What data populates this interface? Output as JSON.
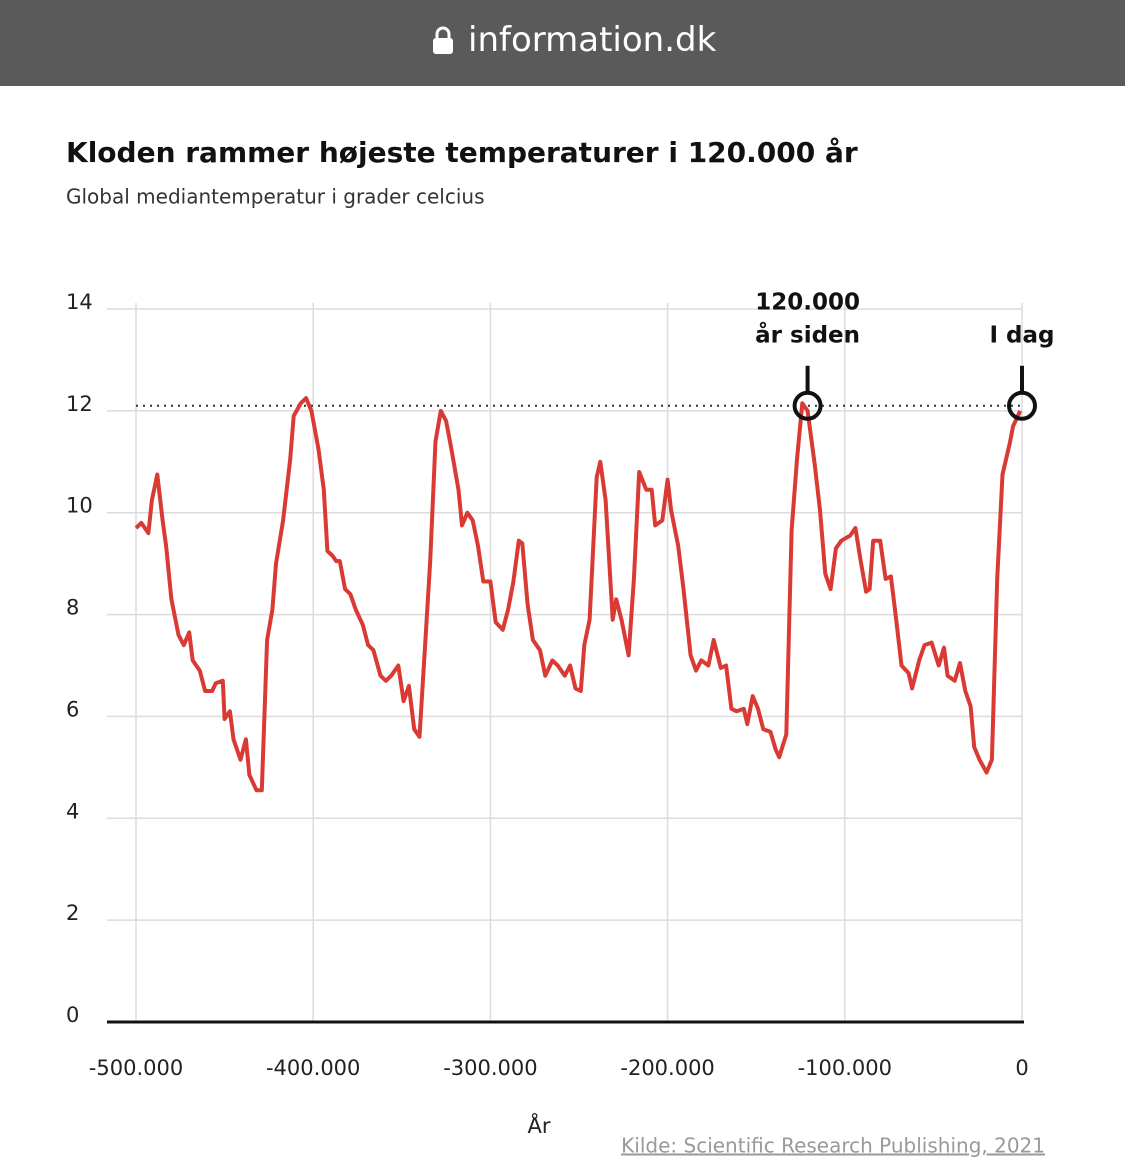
{
  "browser": {
    "url": "information.dk"
  },
  "chart_data": {
    "type": "line",
    "title": "Kloden rammer højeste temperaturer i 120.000 år",
    "subtitle": "Global mediantemperatur i grader celcius",
    "x_label": "År",
    "source": "Kilde: Scientific Research Publishing, 2021",
    "xlim": [
      -500000,
      0
    ],
    "ylim": [
      0,
      14
    ],
    "xticks": [
      {
        "value": -500000,
        "label": "-500.000"
      },
      {
        "value": -400000,
        "label": "-400.000"
      },
      {
        "value": -300000,
        "label": "-300.000"
      },
      {
        "value": -200000,
        "label": "-200.000"
      },
      {
        "value": -100000,
        "label": "-100.000"
      },
      0
    ],
    "yticks": [
      0,
      2,
      4,
      6,
      8,
      10,
      12,
      14
    ],
    "grid": true,
    "reference_line": 12.1,
    "annotations": [
      {
        "label": [
          "120.000",
          "år siden"
        ],
        "x": -121000,
        "y": 12.1
      },
      {
        "label": [
          "I dag"
        ],
        "x": 0,
        "y": 12.1
      }
    ],
    "series": [
      {
        "color": "#d93a34",
        "x": [
          -500000,
          -497000,
          -493000,
          -491000,
          -488000,
          -485000,
          -483000,
          -480000,
          -476000,
          -473000,
          -470000,
          -468000,
          -464000,
          -461000,
          -457000,
          -455000,
          -451000,
          -450000,
          -447000,
          -445000,
          -441000,
          -438000,
          -436000,
          -432000,
          -429000,
          -426000,
          -423000,
          -421000,
          -417000,
          -413000,
          -411000,
          -407000,
          -404000,
          -401000,
          -397000,
          -394000,
          -392000,
          -389000,
          -387000,
          -385000,
          -382000,
          -379000,
          -376000,
          -372000,
          -369000,
          -366000,
          -362000,
          -359000,
          -356000,
          -352000,
          -349000,
          -346000,
          -343000,
          -340000,
          -337000,
          -334000,
          -331000,
          -328000,
          -325000,
          -322000,
          -318000,
          -316000,
          -313000,
          -310000,
          -307000,
          -304000,
          -300000,
          -297000,
          -293000,
          -290000,
          -287000,
          -284000,
          -282000,
          -279000,
          -276000,
          -272000,
          -269000,
          -265000,
          -262000,
          -258000,
          -255000,
          -252000,
          -249000,
          -247000,
          -244000,
          -240000,
          -238000,
          -235000,
          -231000,
          -229000,
          -226000,
          -222000,
          -219000,
          -216000,
          -212000,
          -209000,
          -207000,
          -203000,
          -200000,
          -198000,
          -194000,
          -191000,
          -187000,
          -184000,
          -181000,
          -177000,
          -174000,
          -170000,
          -167000,
          -164000,
          -161000,
          -157000,
          -155000,
          -152000,
          -149000,
          -146000,
          -142000,
          -139000,
          -137000,
          -133000,
          -130000,
          -127000,
          -124000,
          -121000,
          -117000,
          -114000,
          -111000,
          -108000,
          -105000,
          -102000,
          -97000,
          -94000,
          -91000,
          -88000,
          -86000,
          -84000,
          -80000,
          -77000,
          -74000,
          -71000,
          -68000,
          -64000,
          -62000,
          -58000,
          -55000,
          -51000,
          -47000,
          -44000,
          -42000,
          -38000,
          -35000,
          -32000,
          -29000,
          -27000,
          -24000,
          -20000,
          -17000,
          -14000,
          -11000,
          -7000,
          -5000,
          -1000
        ],
        "values": [
          9.7,
          9.8,
          9.6,
          10.25,
          10.75,
          9.85,
          9.35,
          8.3,
          7.6,
          7.4,
          7.65,
          7.1,
          6.9,
          6.5,
          6.5,
          6.65,
          6.7,
          5.95,
          6.1,
          5.55,
          5.15,
          5.55,
          4.85,
          4.55,
          4.55,
          7.5,
          8.1,
          9.0,
          9.85,
          11.05,
          11.9,
          12.15,
          12.25,
          12.0,
          11.25,
          10.45,
          9.25,
          9.15,
          9.05,
          9.05,
          8.5,
          8.4,
          8.1,
          7.8,
          7.4,
          7.3,
          6.8,
          6.7,
          6.8,
          7.0,
          6.3,
          6.6,
          5.75,
          5.6,
          7.3,
          9.05,
          11.4,
          12.0,
          11.8,
          11.25,
          10.45,
          9.75,
          10.0,
          9.85,
          9.35,
          8.65,
          8.65,
          7.85,
          7.7,
          8.1,
          8.65,
          9.45,
          9.4,
          8.2,
          7.5,
          7.3,
          6.8,
          7.1,
          7.0,
          6.8,
          7.0,
          6.55,
          6.5,
          7.4,
          7.9,
          10.7,
          11.0,
          10.25,
          7.9,
          8.3,
          7.9,
          7.2,
          8.7,
          10.8,
          10.45,
          10.45,
          9.75,
          9.85,
          10.65,
          10.05,
          9.35,
          8.5,
          7.2,
          6.9,
          7.1,
          7.0,
          7.5,
          6.95,
          7.0,
          6.15,
          6.1,
          6.15,
          5.85,
          6.4,
          6.15,
          5.75,
          5.7,
          5.35,
          5.2,
          5.65,
          9.65,
          11.05,
          12.15,
          12.0,
          10.95,
          10.05,
          8.8,
          8.5,
          9.3,
          9.45,
          9.55,
          9.7,
          9.05,
          8.45,
          8.5,
          9.45,
          9.45,
          8.7,
          8.75,
          7.9,
          7.0,
          6.85,
          6.55,
          7.1,
          7.4,
          7.45,
          7.0,
          7.35,
          6.8,
          6.7,
          7.05,
          6.5,
          6.2,
          5.4,
          5.15,
          4.9,
          5.15,
          8.7,
          10.75,
          11.35,
          11.7,
          12.0
        ]
      }
    ]
  }
}
